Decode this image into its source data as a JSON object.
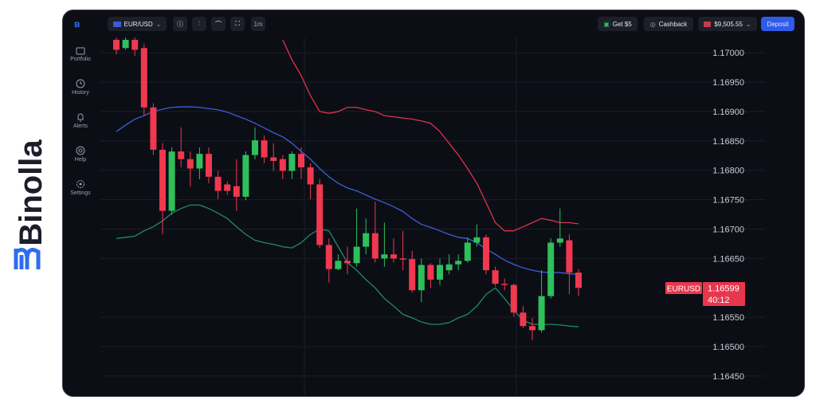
{
  "brand": "Binolla",
  "sidebar": [
    {
      "label": "Portfolio"
    },
    {
      "label": "History"
    },
    {
      "label": "Alerts"
    },
    {
      "label": "Help"
    },
    {
      "label": "Settings"
    }
  ],
  "topbar": {
    "pair": "EUR/USD",
    "timeframe": "1m",
    "bonus": "Get $5",
    "cashback": "Cashback",
    "balance": "$9,505.55",
    "deposit": "Deposit"
  },
  "chart_data": {
    "type": "candlestick",
    "up_color": "#2fbf5b",
    "down_color": "#f0384f",
    "open": [
      1.17022,
      1.17008,
      1.17022,
      1.17008,
      1.16907,
      1.16835,
      1.16731,
      1.16832,
      1.16819,
      1.16803,
      1.16828,
      1.16789,
      1.16776,
      1.16773,
      1.16755,
      1.16826,
      1.16851,
      1.16822,
      1.16819,
      1.16799,
      1.16828,
      1.16805,
      1.16776,
      1.16673,
      1.16632,
      1.16646,
      1.16642,
      1.1667,
      1.16693,
      1.1665,
      1.16657,
      1.1665,
      1.16649,
      1.16596,
      1.16639,
      1.16614,
      1.1663,
      1.1664,
      1.16646,
      1.16677,
      1.16686,
      1.1663,
      1.16607,
      1.16605,
      1.16558,
      1.16535,
      1.16528,
      1.16586,
      1.16677,
      1.16681,
      1.16626
    ],
    "high": [
      1.17028,
      1.17026,
      1.17026,
      1.17015,
      1.16914,
      1.16846,
      1.16839,
      1.16873,
      1.16832,
      1.16839,
      1.16839,
      1.16799,
      1.16781,
      1.16819,
      1.16832,
      1.16873,
      1.16859,
      1.16846,
      1.16826,
      1.16832,
      1.16839,
      1.16812,
      1.16785,
      1.16684,
      1.16657,
      1.1667,
      1.16735,
      1.16718,
      1.16747,
      1.16711,
      1.16684,
      1.16697,
      1.16663,
      1.1665,
      1.16642,
      1.1665,
      1.16657,
      1.16657,
      1.16686,
      1.16708,
      1.16691,
      1.16636,
      1.16616,
      1.16607,
      1.16569,
      1.16549,
      1.1663,
      1.16684,
      1.16735,
      1.16691,
      1.16632
    ],
    "low": [
      1.16997,
      1.17005,
      1.16995,
      1.16893,
      1.16826,
      1.16691,
      1.16724,
      1.16805,
      1.16772,
      1.16785,
      1.16778,
      1.16751,
      1.16758,
      1.16731,
      1.16749,
      1.16819,
      1.16812,
      1.16799,
      1.16785,
      1.16785,
      1.16785,
      1.16751,
      1.16668,
      1.16609,
      1.1663,
      1.16623,
      1.16636,
      1.16657,
      1.16643,
      1.16636,
      1.16643,
      1.1663,
      1.16592,
      1.16576,
      1.166,
      1.16605,
      1.16623,
      1.1663,
      1.16643,
      1.1667,
      1.16623,
      1.16603,
      1.16596,
      1.16551,
      1.16532,
      1.16511,
      1.16524,
      1.16582,
      1.1667,
      1.16589,
      1.16586
    ],
    "close": [
      1.17005,
      1.17022,
      1.17005,
      1.16907,
      1.16835,
      1.16731,
      1.16832,
      1.16819,
      1.16803,
      1.16828,
      1.16789,
      1.16765,
      1.16765,
      1.16755,
      1.16826,
      1.16851,
      1.16822,
      1.16816,
      1.16799,
      1.16828,
      1.16805,
      1.16776,
      1.16673,
      1.16632,
      1.16646,
      1.16642,
      1.1667,
      1.16693,
      1.1665,
      1.16657,
      1.1665,
      1.16649,
      1.16596,
      1.16639,
      1.16614,
      1.16639,
      1.1664,
      1.16646,
      1.16677,
      1.16686,
      1.1663,
      1.16607,
      1.16605,
      1.16558,
      1.16535,
      1.16528,
      1.16586,
      1.16677,
      1.16684,
      1.16626,
      1.166
    ],
    "bands": [
      {
        "color": "#d9344a",
        "values": [
          null,
          null,
          null,
          null,
          null,
          null,
          null,
          null,
          null,
          null,
          null,
          null,
          null,
          null,
          null,
          null,
          null,
          null,
          1.17022,
          1.16988,
          1.16961,
          1.16927,
          1.169,
          1.16897,
          1.169,
          1.16907,
          1.16907,
          1.16903,
          1.169,
          1.16893,
          1.16891,
          1.16889,
          1.16887,
          1.16884,
          1.1688,
          1.16866,
          1.16846,
          1.16826,
          1.16803,
          1.16778,
          1.16745,
          1.16711,
          1.16697,
          1.16697,
          1.16704,
          1.16711,
          1.16718,
          1.16715,
          1.16711,
          1.16711,
          1.16709
        ]
      },
      {
        "color": "#3b5fd9",
        "values": [
          1.16866,
          1.16877,
          1.16887,
          1.16893,
          1.169,
          1.16904,
          1.16907,
          1.16908,
          1.16908,
          1.16907,
          1.16905,
          1.16903,
          1.16899,
          1.16893,
          1.16887,
          1.1688,
          1.16872,
          1.16864,
          1.16857,
          1.16846,
          1.16832,
          1.16819,
          1.16803,
          1.16789,
          1.16778,
          1.1677,
          1.16765,
          1.16758,
          1.16751,
          1.16745,
          1.16738,
          1.1673,
          1.16718,
          1.16708,
          1.16703,
          1.16697,
          1.16691,
          1.16686,
          1.16684,
          1.16677,
          1.16666,
          1.16657,
          1.16647,
          1.1664,
          1.16634,
          1.1663,
          1.16627,
          1.16626,
          1.16626,
          1.16624,
          1.16623
        ]
      },
      {
        "color": "#1f8a6a",
        "values": [
          1.16684,
          1.16686,
          1.16688,
          1.16697,
          1.16704,
          1.16714,
          1.16727,
          1.16735,
          1.16741,
          1.16741,
          1.16735,
          1.16727,
          1.16718,
          1.16704,
          1.16691,
          1.16681,
          1.16677,
          1.16674,
          1.1667,
          1.16668,
          1.16677,
          1.16691,
          1.167,
          1.16697,
          1.1667,
          1.16643,
          1.1663,
          1.16614,
          1.166,
          1.16582,
          1.16569,
          1.16555,
          1.16549,
          1.16542,
          1.16538,
          1.16538,
          1.16541,
          1.16549,
          1.16555,
          1.16569,
          1.16589,
          1.166,
          1.16582,
          1.16562,
          1.16545,
          1.16538,
          1.16538,
          1.16538,
          1.16537,
          1.16535,
          1.16534
        ]
      }
    ],
    "ylim": [
      1.16416,
      1.17026
    ],
    "yticks": [
      {
        "value": 1.17,
        "label": "1.17000"
      },
      {
        "value": 1.1695,
        "label": "1.16950"
      },
      {
        "value": 1.169,
        "label": "1.16900"
      },
      {
        "value": 1.1685,
        "label": "1.16850"
      },
      {
        "value": 1.168,
        "label": "1.16800"
      },
      {
        "value": 1.1675,
        "label": "1.16750"
      },
      {
        "value": 1.167,
        "label": "1.16700"
      },
      {
        "value": 1.1665,
        "label": "1.16650"
      },
      {
        "value": 1.1655,
        "label": "1.16550"
      },
      {
        "value": 1.165,
        "label": "1.16500"
      },
      {
        "value": 1.1645,
        "label": "1.16450"
      }
    ],
    "grid": true,
    "current": {
      "symbol": "EURUSD",
      "price": 1.16599,
      "timer": "40:12"
    }
  }
}
